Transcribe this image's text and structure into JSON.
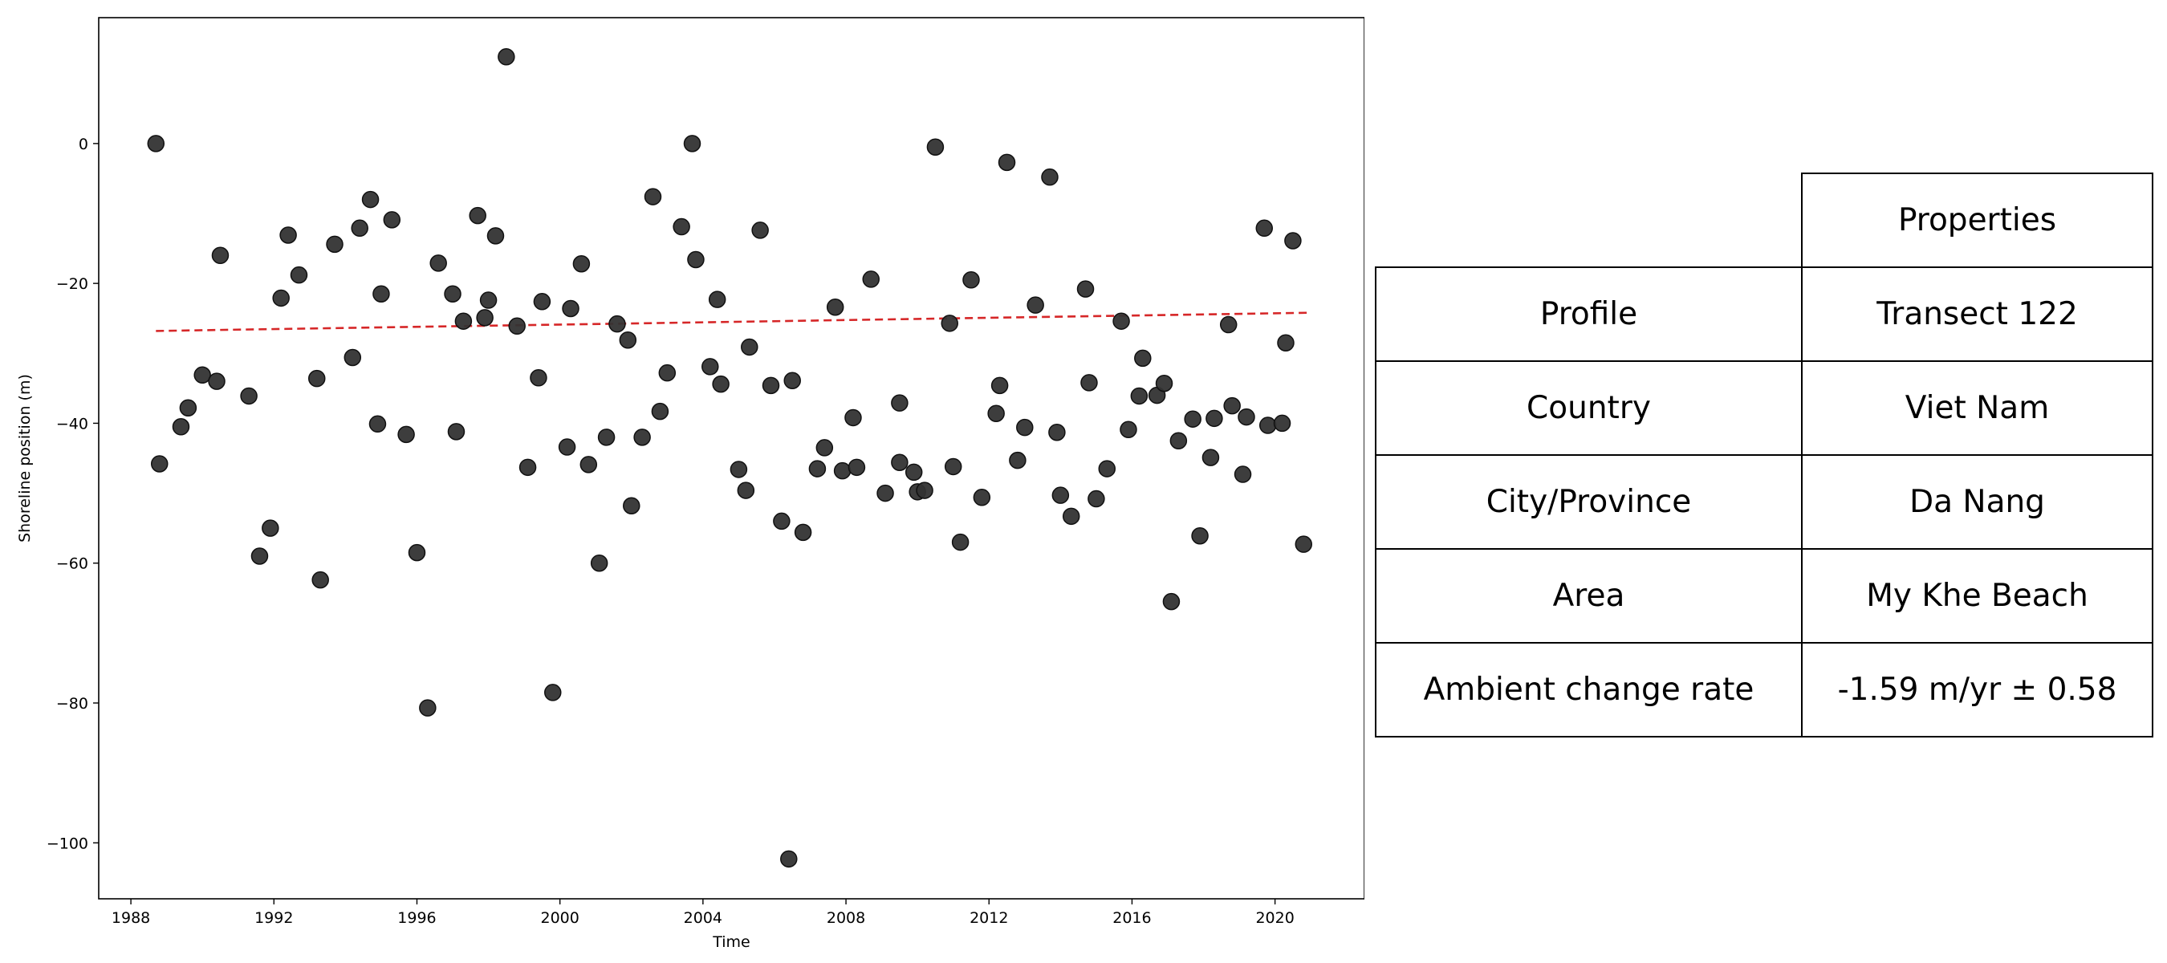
{
  "chart_data": {
    "type": "scatter",
    "xlabel": "Time",
    "ylabel": "Shoreline position (m)",
    "xlim": [
      1987.1,
      2022.5
    ],
    "ylim": [
      -108,
      18
    ],
    "xticks": [
      1988,
      1992,
      1996,
      2000,
      2004,
      2008,
      2012,
      2016,
      2020
    ],
    "yticks": [
      0,
      -20,
      -40,
      -60,
      -80,
      -100
    ],
    "ytick_labels": [
      "0",
      "−20",
      "−40",
      "−60",
      "−80",
      "−100"
    ],
    "point_color": "#333333",
    "trend_color": "#d62728",
    "trend": {
      "x": [
        1988.7,
        2020.9
      ],
      "y": [
        -26.8,
        -24.2
      ]
    },
    "points": [
      [
        1988.7,
        0
      ],
      [
        1988.8,
        -45.8
      ],
      [
        1989.4,
        -40.5
      ],
      [
        1989.6,
        -37.8
      ],
      [
        1990.0,
        -33.1
      ],
      [
        1990.4,
        -34
      ],
      [
        1990.5,
        -16
      ],
      [
        1991.3,
        -36.1
      ],
      [
        1991.6,
        -59
      ],
      [
        1991.9,
        -55
      ],
      [
        1992.2,
        -22.1
      ],
      [
        1992.4,
        -13.1
      ],
      [
        1992.7,
        -18.8
      ],
      [
        1993.2,
        -33.6
      ],
      [
        1993.3,
        -62.4
      ],
      [
        1993.7,
        -14.4
      ],
      [
        1994.2,
        -30.6
      ],
      [
        1994.4,
        -12.1
      ],
      [
        1994.7,
        -8
      ],
      [
        1994.9,
        -40.1
      ],
      [
        1995.0,
        -21.5
      ],
      [
        1995.3,
        -10.9
      ],
      [
        1995.7,
        -41.6
      ],
      [
        1996.0,
        -58.5
      ],
      [
        1996.3,
        -80.7
      ],
      [
        1996.6,
        -17.1
      ],
      [
        1997.0,
        -21.5
      ],
      [
        1997.1,
        -41.2
      ],
      [
        1997.3,
        -25.4
      ],
      [
        1997.7,
        -10.3
      ],
      [
        1997.9,
        -24.9
      ],
      [
        1998.0,
        -22.4
      ],
      [
        1998.2,
        -13.2
      ],
      [
        1998.5,
        12.4
      ],
      [
        1998.8,
        -26.1
      ],
      [
        1999.1,
        -46.3
      ],
      [
        1999.4,
        -33.5
      ],
      [
        1999.5,
        -22.6
      ],
      [
        1999.8,
        -78.5
      ],
      [
        2000.2,
        -43.4
      ],
      [
        2000.3,
        -23.6
      ],
      [
        2000.6,
        -17.2
      ],
      [
        2000.8,
        -45.9
      ],
      [
        2001.1,
        -60
      ],
      [
        2001.3,
        -42
      ],
      [
        2001.6,
        -25.8
      ],
      [
        2001.9,
        -28.1
      ],
      [
        2002.0,
        -51.8
      ],
      [
        2002.3,
        -42
      ],
      [
        2002.6,
        -7.6
      ],
      [
        2002.8,
        -38.3
      ],
      [
        2003.0,
        -32.8
      ],
      [
        2003.4,
        -11.9
      ],
      [
        2003.7,
        0
      ],
      [
        2003.8,
        -16.6
      ],
      [
        2004.2,
        -31.9
      ],
      [
        2004.4,
        -22.3
      ],
      [
        2004.5,
        -34.4
      ],
      [
        2005.0,
        -46.6
      ],
      [
        2005.2,
        -49.6
      ],
      [
        2005.3,
        -29.1
      ],
      [
        2005.6,
        -12.4
      ],
      [
        2005.9,
        -34.6
      ],
      [
        2006.2,
        -54
      ],
      [
        2006.4,
        -102.3
      ],
      [
        2006.5,
        -33.9
      ],
      [
        2006.8,
        -55.6
      ],
      [
        2007.2,
        -46.5
      ],
      [
        2007.4,
        -43.5
      ],
      [
        2007.7,
        -23.4
      ],
      [
        2007.9,
        -46.8
      ],
      [
        2008.2,
        -39.2
      ],
      [
        2008.3,
        -46.3
      ],
      [
        2008.7,
        -19.4
      ],
      [
        2009.1,
        -50
      ],
      [
        2009.5,
        -45.6
      ],
      [
        2009.5,
        -37.1
      ],
      [
        2009.9,
        -47
      ],
      [
        2010.0,
        -49.8
      ],
      [
        2010.2,
        -49.6
      ],
      [
        2010.5,
        -0.5
      ],
      [
        2010.9,
        -25.7
      ],
      [
        2011.0,
        -46.2
      ],
      [
        2011.2,
        -57
      ],
      [
        2011.5,
        -19.5
      ],
      [
        2011.8,
        -50.6
      ],
      [
        2012.2,
        -38.6
      ],
      [
        2012.3,
        -34.6
      ],
      [
        2012.5,
        -2.7
      ],
      [
        2012.8,
        -45.3
      ],
      [
        2013.0,
        -40.6
      ],
      [
        2013.3,
        -23.1
      ],
      [
        2013.7,
        -4.8
      ],
      [
        2013.9,
        -41.3
      ],
      [
        2014.0,
        -50.3
      ],
      [
        2014.3,
        -53.3
      ],
      [
        2014.7,
        -20.8
      ],
      [
        2014.8,
        -34.2
      ],
      [
        2015.0,
        -50.8
      ],
      [
        2015.3,
        -46.5
      ],
      [
        2015.7,
        -25.4
      ],
      [
        2015.9,
        -40.9
      ],
      [
        2016.2,
        -36.1
      ],
      [
        2016.3,
        -30.7
      ],
      [
        2016.7,
        -36
      ],
      [
        2016.9,
        -34.3
      ],
      [
        2017.1,
        -65.5
      ],
      [
        2017.3,
        -42.5
      ],
      [
        2017.7,
        -39.4
      ],
      [
        2017.9,
        -56.1
      ],
      [
        2018.2,
        -44.9
      ],
      [
        2018.3,
        -39.3
      ],
      [
        2018.7,
        -25.9
      ],
      [
        2018.8,
        -37.5
      ],
      [
        2019.1,
        -47.3
      ],
      [
        2019.2,
        -39.1
      ],
      [
        2019.7,
        -12.1
      ],
      [
        2019.8,
        -40.3
      ],
      [
        2020.2,
        -40
      ],
      [
        2020.3,
        -28.5
      ],
      [
        2020.5,
        -13.9
      ],
      [
        2020.8,
        -57.3
      ]
    ]
  },
  "table": {
    "header": "Properties",
    "rows": [
      {
        "label": "Profile",
        "value": "Transect 122"
      },
      {
        "label": "Country",
        "value": "Viet Nam"
      },
      {
        "label": "City/Province",
        "value": "Da Nang"
      },
      {
        "label": "Area",
        "value": "My Khe Beach"
      },
      {
        "label": "Ambient change rate",
        "value": "-1.59 m/yr ± 0.58"
      }
    ]
  }
}
